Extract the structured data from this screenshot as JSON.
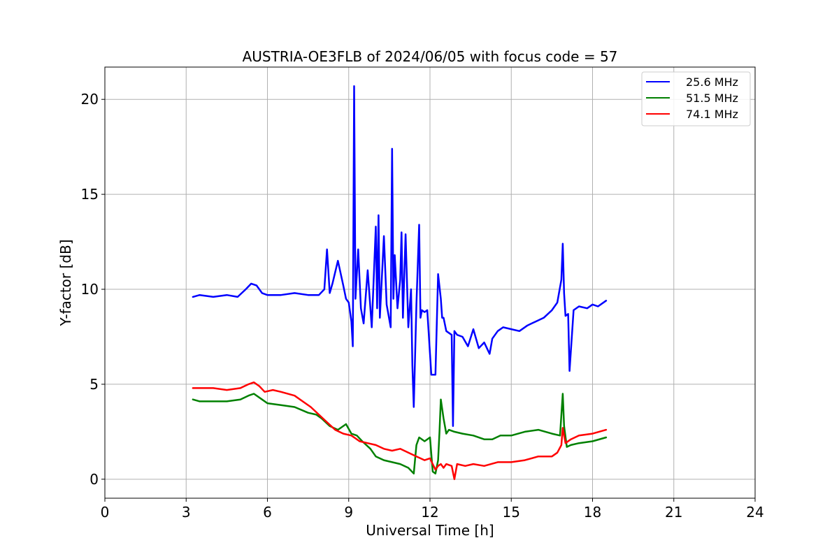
{
  "chart_data": {
    "type": "line",
    "title": "AUSTRIA-OE3FLB of 2024/06/05 with focus code = 57",
    "xlabel": "Universal Time [h]",
    "ylabel": "Y-factor [dB]",
    "xlim": [
      0,
      24
    ],
    "ylim": [
      -1,
      21.7
    ],
    "xticks": [
      0,
      3,
      6,
      9,
      12,
      15,
      18,
      21,
      24
    ],
    "yticks": [
      0,
      5,
      10,
      15,
      20
    ],
    "grid": true,
    "legend_position": "top-right",
    "colors": {
      "25.6 MHz": "#0000ff",
      "51.5 MHz": "#008000",
      "74.1 MHz": "#ff0000"
    },
    "series": [
      {
        "name": "25.6 MHz",
        "color": "#0000ff",
        "x": [
          3.25,
          3.5,
          4.0,
          4.5,
          4.9,
          5.2,
          5.4,
          5.6,
          5.8,
          6.0,
          6.5,
          7.0,
          7.5,
          7.9,
          8.1,
          8.2,
          8.3,
          8.4,
          8.6,
          8.8,
          8.9,
          9.0,
          9.1,
          9.15,
          9.2,
          9.25,
          9.35,
          9.45,
          9.55,
          9.7,
          9.85,
          10.0,
          10.05,
          10.1,
          10.15,
          10.3,
          10.4,
          10.55,
          10.6,
          10.65,
          10.7,
          10.8,
          10.9,
          10.95,
          11.0,
          11.1,
          11.2,
          11.3,
          11.35,
          11.4,
          11.5,
          11.6,
          11.65,
          11.7,
          11.8,
          11.9,
          12.05,
          12.1,
          12.2,
          12.3,
          12.4,
          12.45,
          12.5,
          12.6,
          12.8,
          12.85,
          12.9,
          13.0,
          13.2,
          13.4,
          13.6,
          13.8,
          14.0,
          14.2,
          14.3,
          14.5,
          14.7,
          15.0,
          15.3,
          15.6,
          15.9,
          16.2,
          16.5,
          16.7,
          16.85,
          16.9,
          16.95,
          17.0,
          17.1,
          17.15,
          17.3,
          17.5,
          17.8,
          18.0,
          18.2,
          18.5
        ],
        "y": [
          9.6,
          9.7,
          9.6,
          9.7,
          9.6,
          10.0,
          10.3,
          10.2,
          9.8,
          9.7,
          9.7,
          9.8,
          9.7,
          9.7,
          10.0,
          12.1,
          9.8,
          10.3,
          11.5,
          10.2,
          9.5,
          9.3,
          8.3,
          7.0,
          20.7,
          9.5,
          12.1,
          9.0,
          8.2,
          11.0,
          8.0,
          13.3,
          9.0,
          13.9,
          8.5,
          12.8,
          9.2,
          8.0,
          17.4,
          9.5,
          11.8,
          9.0,
          10.5,
          13.0,
          8.5,
          12.9,
          8.0,
          10.0,
          6.0,
          3.8,
          9.2,
          13.4,
          8.5,
          8.9,
          8.8,
          8.9,
          5.5,
          5.5,
          5.5,
          10.8,
          9.5,
          8.5,
          8.5,
          7.8,
          7.6,
          2.8,
          7.8,
          7.6,
          7.5,
          7.0,
          7.9,
          6.9,
          7.2,
          6.6,
          7.4,
          7.8,
          8.0,
          7.9,
          7.8,
          8.1,
          8.3,
          8.5,
          8.9,
          9.3,
          10.5,
          12.4,
          9.8,
          8.6,
          8.7,
          5.7,
          8.9,
          9.1,
          9.0,
          9.2,
          9.1,
          9.4
        ]
      },
      {
        "name": "51.5 MHz",
        "color": "#008000",
        "x": [
          3.25,
          3.5,
          4.0,
          4.5,
          5.0,
          5.3,
          5.5,
          5.8,
          6.0,
          6.5,
          7.0,
          7.5,
          7.8,
          8.0,
          8.3,
          8.6,
          8.9,
          9.1,
          9.3,
          9.5,
          9.8,
          10.0,
          10.3,
          10.6,
          10.9,
          11.2,
          11.4,
          11.5,
          11.6,
          11.8,
          12.0,
          12.1,
          12.2,
          12.3,
          12.35,
          12.4,
          12.5,
          12.6,
          12.7,
          12.9,
          13.2,
          13.6,
          14.0,
          14.3,
          14.6,
          15.0,
          15.5,
          16.0,
          16.5,
          16.8,
          16.9,
          16.95,
          17.05,
          17.2,
          17.5,
          18.0,
          18.5
        ],
        "y": [
          4.2,
          4.1,
          4.1,
          4.1,
          4.2,
          4.4,
          4.5,
          4.2,
          4.0,
          3.9,
          3.8,
          3.5,
          3.4,
          3.2,
          2.8,
          2.6,
          2.9,
          2.4,
          2.3,
          2.0,
          1.6,
          1.2,
          1.0,
          0.9,
          0.8,
          0.6,
          0.3,
          1.8,
          2.2,
          2.0,
          2.2,
          0.4,
          0.3,
          1.0,
          2.5,
          4.2,
          3.2,
          2.4,
          2.6,
          2.5,
          2.4,
          2.3,
          2.1,
          2.1,
          2.3,
          2.3,
          2.5,
          2.6,
          2.4,
          2.3,
          4.5,
          2.8,
          1.7,
          1.8,
          1.9,
          2.0,
          2.2
        ]
      },
      {
        "name": "74.1 MHz",
        "color": "#ff0000",
        "x": [
          3.25,
          3.5,
          4.0,
          4.5,
          5.0,
          5.3,
          5.5,
          5.7,
          5.9,
          6.2,
          6.5,
          7.0,
          7.3,
          7.6,
          7.9,
          8.2,
          8.5,
          8.8,
          9.1,
          9.4,
          9.7,
          10.0,
          10.3,
          10.6,
          10.9,
          11.2,
          11.5,
          11.8,
          12.0,
          12.1,
          12.2,
          12.3,
          12.4,
          12.5,
          12.6,
          12.8,
          12.9,
          13.0,
          13.3,
          13.6,
          14.0,
          14.5,
          15.0,
          15.5,
          16.0,
          16.5,
          16.7,
          16.85,
          16.9,
          17.0,
          17.2,
          17.5,
          18.0,
          18.5
        ],
        "y": [
          4.8,
          4.8,
          4.8,
          4.7,
          4.8,
          5.0,
          5.1,
          4.9,
          4.6,
          4.7,
          4.6,
          4.4,
          4.1,
          3.8,
          3.4,
          3.0,
          2.6,
          2.4,
          2.3,
          2.0,
          1.9,
          1.8,
          1.6,
          1.5,
          1.6,
          1.4,
          1.2,
          1.0,
          1.1,
          0.8,
          0.5,
          0.7,
          0.8,
          0.6,
          0.8,
          0.7,
          0.0,
          0.8,
          0.7,
          0.8,
          0.7,
          0.9,
          0.9,
          1.0,
          1.2,
          1.2,
          1.4,
          1.8,
          2.7,
          1.9,
          2.1,
          2.3,
          2.4,
          2.6
        ]
      }
    ]
  }
}
